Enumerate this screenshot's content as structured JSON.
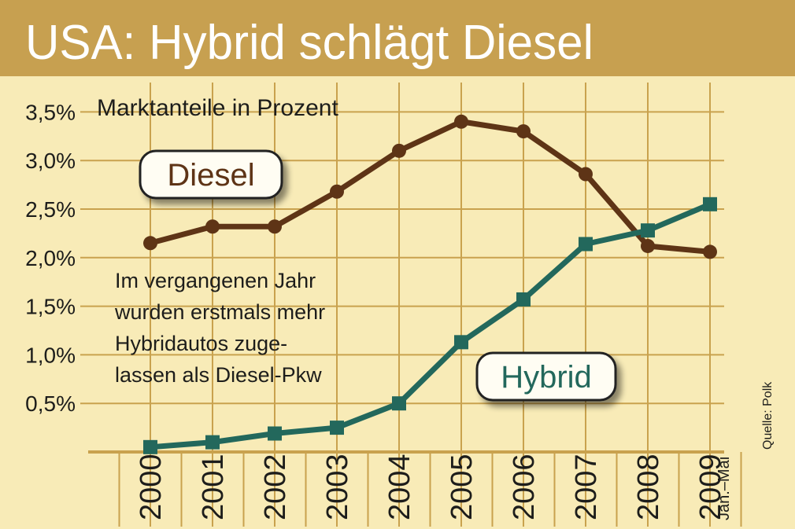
{
  "colors": {
    "banner": "#c7a050",
    "background": "#f8ebb7",
    "grid": "#c9a24e",
    "diesel": "#5e3416",
    "hybrid": "#23685c",
    "text": "#1d1d1b",
    "label_bg": "#fffdf3"
  },
  "header": {
    "title": "USA: Hybrid schlägt Diesel"
  },
  "annotation": {
    "lines": [
      "Im vergangenen Jahr",
      "wurden erstmals mehr",
      "Hybridautos zuge-",
      "lassen als Diesel-Pkw"
    ]
  },
  "source": "Quelle: Polk",
  "chart_data": {
    "type": "line",
    "title": "Marktanteile in Prozent",
    "x": [
      "2000",
      "2001",
      "2002",
      "2003",
      "2004",
      "2005",
      "2006",
      "2007",
      "2008",
      "2009"
    ],
    "x_note": "Jan.–Mai",
    "y_ticks": [
      "0,5%",
      "1,0%",
      "1,5%",
      "2,0%",
      "2,5%",
      "3,0%",
      "3,5%"
    ],
    "y_tick_values": [
      0.5,
      1.0,
      1.5,
      2.0,
      2.5,
      3.0,
      3.5
    ],
    "ylim": [
      0,
      3.5
    ],
    "grid": true,
    "series": [
      {
        "name": "Diesel",
        "color": "#5e3416",
        "marker": "circle",
        "values": [
          2.15,
          2.32,
          2.32,
          2.68,
          3.1,
          3.4,
          3.3,
          2.86,
          2.12,
          2.06
        ]
      },
      {
        "name": "Hybrid",
        "color": "#23685c",
        "marker": "square",
        "values": [
          0.05,
          0.1,
          0.19,
          0.25,
          0.5,
          1.13,
          1.57,
          2.14,
          2.28,
          2.55
        ]
      }
    ]
  }
}
